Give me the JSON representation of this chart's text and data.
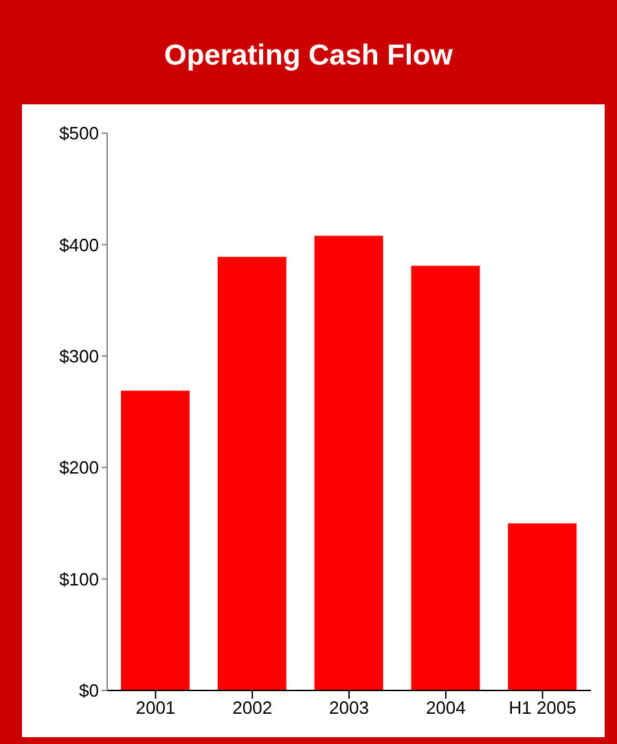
{
  "chart_data": {
    "type": "bar",
    "title": "Operating Cash Flow",
    "categories": [
      "2001",
      "2002",
      "2003",
      "2004",
      "H1 2005"
    ],
    "values": [
      269,
      389,
      408,
      381,
      150
    ],
    "colors": [
      "#ff0000",
      "#ff0000",
      "#ff0000",
      "#ff0000",
      "#ff0000"
    ],
    "ylim": [
      0,
      500
    ],
    "yticks": [
      {
        "value": 0,
        "label": "$0"
      },
      {
        "value": 100,
        "label": "$100"
      },
      {
        "value": 200,
        "label": "$200"
      },
      {
        "value": 300,
        "label": "$300"
      },
      {
        "value": 400,
        "label": "$400"
      },
      {
        "value": 500,
        "label": "$500"
      }
    ],
    "grid": false,
    "legend": false
  }
}
